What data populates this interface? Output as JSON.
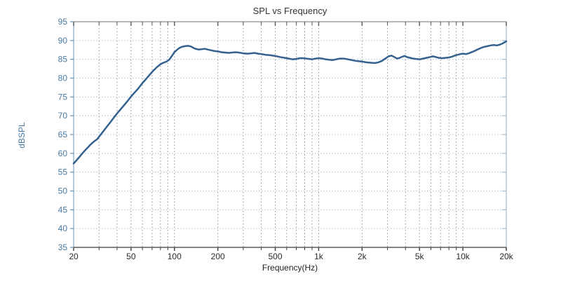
{
  "chart": {
    "title": "SPL vs Frequency",
    "xlabel": "Frequency(Hz)",
    "ylabel": "dBSPL"
  },
  "chart_data": {
    "type": "line",
    "title": "SPL vs Frequency",
    "xlabel": "Frequency(Hz)",
    "ylabel": "dBSPL",
    "x_scale": "log",
    "xlim": [
      20,
      20000
    ],
    "ylim": [
      35,
      95
    ],
    "grid": "on",
    "x_tick_values": [
      20,
      50,
      100,
      200,
      500,
      1000,
      2000,
      5000,
      10000,
      20000
    ],
    "x_tick_labels": [
      "20",
      "50",
      "100",
      "200",
      "500",
      "1k",
      "2k",
      "5k",
      "10k",
      "20k"
    ],
    "x_grid_values": [
      30,
      40,
      50,
      60,
      70,
      80,
      90,
      100,
      200,
      300,
      400,
      500,
      600,
      700,
      800,
      900,
      1000,
      2000,
      3000,
      4000,
      5000,
      6000,
      7000,
      8000,
      9000,
      10000
    ],
    "y_tick_values": [
      35,
      40,
      45,
      50,
      55,
      60,
      65,
      70,
      75,
      80,
      85,
      90,
      95
    ],
    "y_grid_values": [
      40,
      45,
      50,
      55,
      60,
      65,
      70,
      75,
      80,
      85,
      90
    ],
    "series": [
      {
        "name": "SPL",
        "color": "#35618e",
        "points": [
          [
            20,
            57.3
          ],
          [
            21,
            58.2
          ],
          [
            22,
            59.1
          ],
          [
            23,
            60.0
          ],
          [
            24,
            60.8
          ],
          [
            25,
            61.5
          ],
          [
            26,
            62.2
          ],
          [
            27,
            62.8
          ],
          [
            28,
            63.3
          ],
          [
            29,
            63.7
          ],
          [
            30,
            64.4
          ],
          [
            32,
            65.8
          ],
          [
            34,
            67.1
          ],
          [
            36,
            68.3
          ],
          [
            38,
            69.5
          ],
          [
            40,
            70.6
          ],
          [
            42.5,
            71.8
          ],
          [
            45,
            72.9
          ],
          [
            47.5,
            74.0
          ],
          [
            50,
            75.1
          ],
          [
            53,
            76.2
          ],
          [
            56,
            77.2
          ],
          [
            60,
            78.7
          ],
          [
            63,
            79.6
          ],
          [
            67,
            80.8
          ],
          [
            71,
            81.9
          ],
          [
            75,
            82.8
          ],
          [
            80,
            83.7
          ],
          [
            84,
            84.1
          ],
          [
            88,
            84.4
          ],
          [
            92,
            84.9
          ],
          [
            96,
            85.9
          ],
          [
            100,
            86.9
          ],
          [
            104,
            87.5
          ],
          [
            108,
            88.0
          ],
          [
            112,
            88.3
          ],
          [
            118,
            88.5
          ],
          [
            124,
            88.6
          ],
          [
            128,
            88.5
          ],
          [
            132,
            88.3
          ],
          [
            136,
            88.0
          ],
          [
            140,
            87.8
          ],
          [
            147,
            87.6
          ],
          [
            155,
            87.7
          ],
          [
            163,
            87.8
          ],
          [
            170,
            87.6
          ],
          [
            180,
            87.4
          ],
          [
            190,
            87.2
          ],
          [
            200,
            87.1
          ],
          [
            212,
            86.9
          ],
          [
            225,
            86.8
          ],
          [
            238,
            86.7
          ],
          [
            250,
            86.8
          ],
          [
            265,
            86.9
          ],
          [
            280,
            86.8
          ],
          [
            300,
            86.6
          ],
          [
            320,
            86.5
          ],
          [
            340,
            86.6
          ],
          [
            360,
            86.7
          ],
          [
            380,
            86.5
          ],
          [
            400,
            86.4
          ],
          [
            430,
            86.2
          ],
          [
            460,
            86.1
          ],
          [
            500,
            85.9
          ],
          [
            540,
            85.6
          ],
          [
            580,
            85.4
          ],
          [
            620,
            85.2
          ],
          [
            660,
            85.0
          ],
          [
            700,
            85.1
          ],
          [
            740,
            85.3
          ],
          [
            780,
            85.3
          ],
          [
            820,
            85.2
          ],
          [
            860,
            85.1
          ],
          [
            900,
            85.0
          ],
          [
            950,
            85.2
          ],
          [
            1000,
            85.3
          ],
          [
            1060,
            85.2
          ],
          [
            1120,
            85.0
          ],
          [
            1180,
            84.9
          ],
          [
            1250,
            84.8
          ],
          [
            1320,
            85.0
          ],
          [
            1400,
            85.2
          ],
          [
            1500,
            85.2
          ],
          [
            1600,
            85.0
          ],
          [
            1700,
            84.8
          ],
          [
            1800,
            84.6
          ],
          [
            1900,
            84.5
          ],
          [
            2000,
            84.4
          ],
          [
            2150,
            84.2
          ],
          [
            2300,
            84.1
          ],
          [
            2450,
            84.0
          ],
          [
            2600,
            84.2
          ],
          [
            2750,
            84.6
          ],
          [
            2900,
            85.2
          ],
          [
            3050,
            85.8
          ],
          [
            3200,
            86.0
          ],
          [
            3350,
            85.6
          ],
          [
            3500,
            85.2
          ],
          [
            3650,
            85.4
          ],
          [
            3800,
            85.7
          ],
          [
            3950,
            85.9
          ],
          [
            4100,
            85.6
          ],
          [
            4300,
            85.4
          ],
          [
            4500,
            85.2
          ],
          [
            4750,
            85.1
          ],
          [
            5000,
            85.0
          ],
          [
            5300,
            85.2
          ],
          [
            5600,
            85.4
          ],
          [
            5900,
            85.6
          ],
          [
            6200,
            85.8
          ],
          [
            6500,
            85.6
          ],
          [
            6800,
            85.4
          ],
          [
            7200,
            85.3
          ],
          [
            7600,
            85.4
          ],
          [
            8000,
            85.5
          ],
          [
            8400,
            85.7
          ],
          [
            8800,
            86.0
          ],
          [
            9200,
            86.2
          ],
          [
            9600,
            86.4
          ],
          [
            10000,
            86.5
          ],
          [
            10500,
            86.4
          ],
          [
            11000,
            86.6
          ],
          [
            11500,
            86.9
          ],
          [
            12000,
            87.2
          ],
          [
            12600,
            87.6
          ],
          [
            13300,
            88.0
          ],
          [
            14000,
            88.3
          ],
          [
            14800,
            88.5
          ],
          [
            15600,
            88.7
          ],
          [
            16400,
            88.8
          ],
          [
            17200,
            88.7
          ],
          [
            18000,
            88.9
          ],
          [
            18800,
            89.2
          ],
          [
            19400,
            89.5
          ],
          [
            20000,
            89.8
          ]
        ]
      }
    ],
    "style": {
      "curve_color": "#35618e",
      "curve_width": 2.5,
      "h_grid_color": "#a8c4d8",
      "v_grid_color": "#8f9499",
      "axis_left_color": "#8aa7c0",
      "axis_right_color": "#a4bccf",
      "axis_top_color": "#8c8c8c",
      "axis_bottom_color": "#3c3c3c",
      "y_label_color": "#4a7aa3",
      "x_label_color": "#2b2b2b",
      "left_tick_color": "#6f96b4",
      "right_tick_color": "#a4bccf",
      "top_tick_color": "#5a5a5a",
      "bottom_tick_color": "#3c3c3c"
    }
  }
}
